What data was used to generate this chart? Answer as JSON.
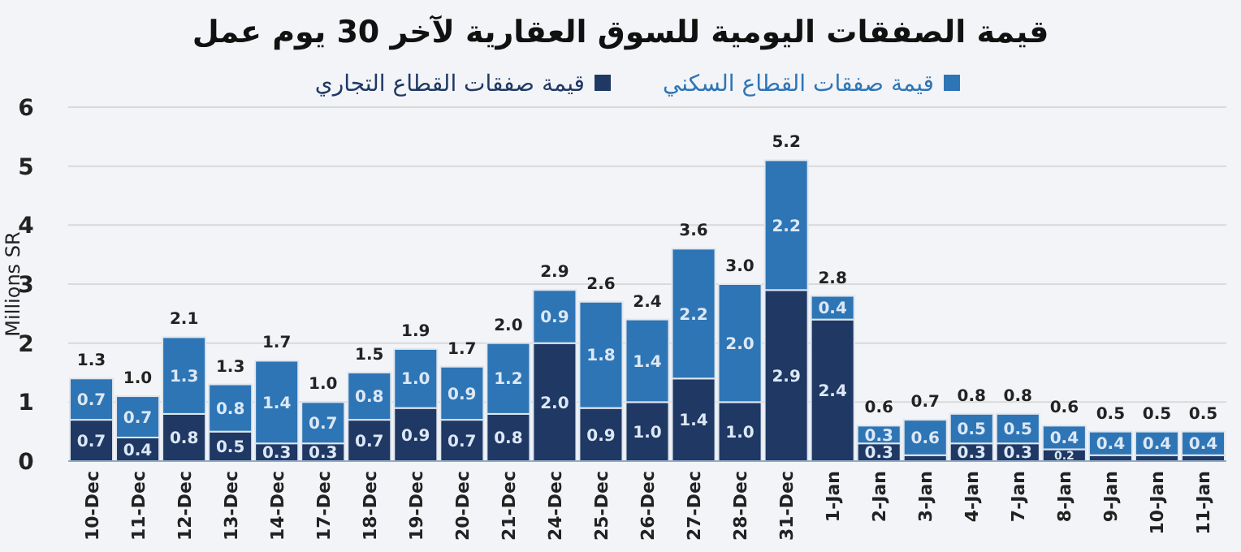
{
  "chart_data": {
    "type": "bar",
    "title": "قيمة الصفقات اليومية للسوق العقارية لآخر 30 يوم عمل",
    "ylabel": "Millions SR",
    "categories": [
      "10-Dec",
      "11-Dec",
      "12-Dec",
      "13-Dec",
      "14-Dec",
      "17-Dec",
      "18-Dec",
      "19-Dec",
      "20-Dec",
      "21-Dec",
      "24-Dec",
      "25-Dec",
      "26-Dec",
      "27-Dec",
      "28-Dec",
      "31-Dec",
      "1-Jan",
      "2-Jan",
      "3-Jan",
      "4-Jan",
      "7-Jan",
      "8-Jan",
      "9-Jan",
      "10-Jan",
      "11-Jan"
    ],
    "series": [
      {
        "name": "قيمة صفقات القطاع التجاري",
        "color": "#1f3864",
        "values": [
          0.7,
          0.4,
          0.8,
          0.5,
          0.3,
          0.3,
          0.7,
          0.9,
          0.7,
          0.8,
          2.0,
          0.9,
          1.0,
          1.4,
          1.0,
          2.9,
          2.4,
          0.3,
          0.1,
          0.3,
          0.3,
          0.2,
          0.1,
          0.1,
          0.1
        ],
        "value_labels": [
          "0.7",
          "0.4",
          "0.8",
          "0.5",
          "0.3",
          "0.3",
          "0.7",
          "0.9",
          "0.7",
          "0.8",
          "2.0",
          "0.9",
          "1.0",
          "1.4",
          "1.0",
          "2.9",
          "2.4",
          "0.3",
          null,
          "0.3",
          "0.3",
          "0.2",
          null,
          null,
          null
        ]
      },
      {
        "name": "قيمة صفقات القطاع السكني",
        "color": "#2e75b6",
        "values": [
          0.7,
          0.7,
          1.3,
          0.8,
          1.4,
          0.7,
          0.8,
          1.0,
          0.9,
          1.2,
          0.9,
          1.8,
          1.4,
          2.2,
          2.0,
          2.2,
          0.4,
          0.3,
          0.6,
          0.5,
          0.5,
          0.4,
          0.4,
          0.4,
          0.4
        ],
        "value_labels": [
          "0.7",
          "0.7",
          "1.3",
          "0.8",
          "1.4",
          "0.7",
          "0.8",
          "1.0",
          "0.9",
          "1.2",
          "0.9",
          "1.8",
          "1.4",
          "2.2",
          "2.0",
          "2.2",
          "0.4",
          "0.3",
          "0.6",
          "0.5",
          "0.5",
          "0.4",
          "0.4",
          "0.4",
          "0.4"
        ]
      }
    ],
    "stacked": true,
    "totals": [
      "1.3",
      "1.0",
      "2.1",
      "1.3",
      "1.7",
      "1.0",
      "1.5",
      "1.9",
      "1.7",
      "2.0",
      "2.9",
      "2.6",
      "2.4",
      "3.6",
      "3.0",
      "5.2",
      "2.8",
      "0.6",
      "0.7",
      "0.8",
      "0.8",
      "0.6",
      "0.5",
      "0.5",
      "0.5"
    ],
    "ylim": [
      0,
      6
    ],
    "yticks": [
      0,
      1,
      2,
      3,
      4,
      5,
      6
    ],
    "grid": "y",
    "legend": "top"
  }
}
